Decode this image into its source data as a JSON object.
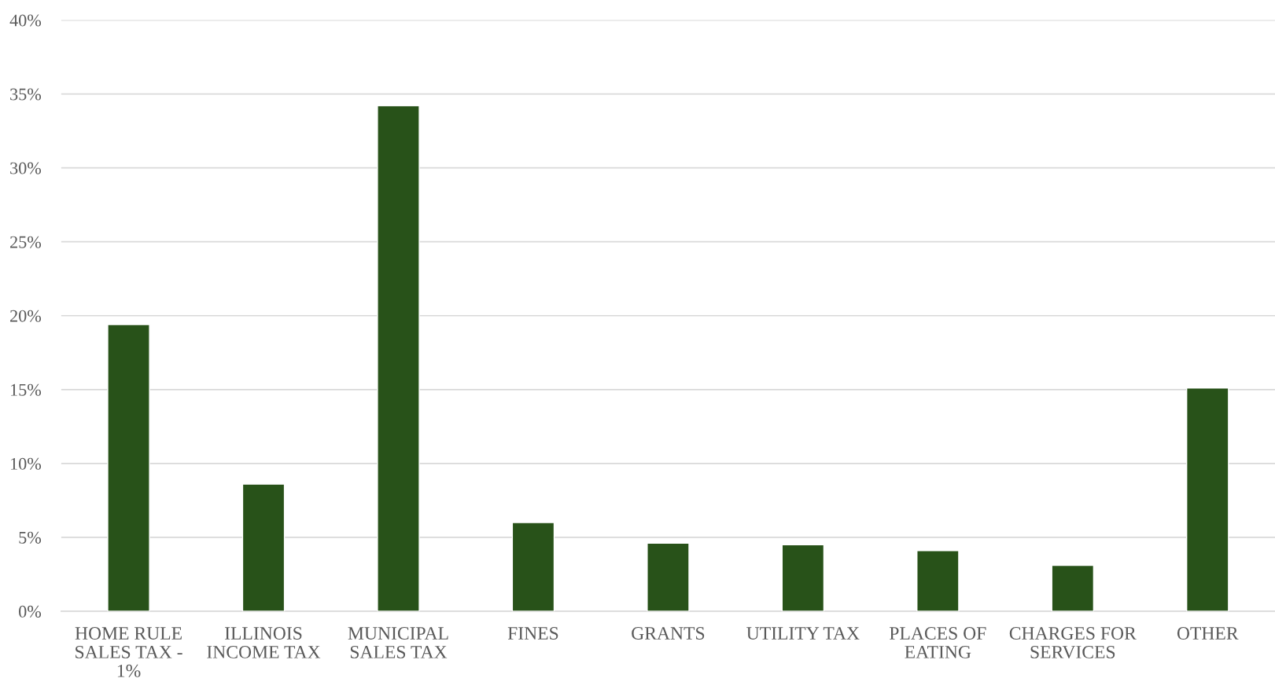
{
  "chart_data": {
    "type": "bar",
    "categories": [
      "HOME RULE SALES TAX - 1%",
      "ILLINOIS INCOME TAX",
      "MUNICIPAL SALES TAX",
      "FINES",
      "GRANTS",
      "UTILITY TAX",
      "PLACES OF EATING",
      "CHARGES FOR SERVICES",
      "OTHER"
    ],
    "values": [
      19.4,
      8.6,
      34.2,
      6.0,
      4.6,
      4.5,
      4.1,
      3.1,
      15.1
    ],
    "color": "#285219",
    "ylim": [
      0,
      40
    ],
    "yticks": [
      {
        "value": 0,
        "label": "0%"
      },
      {
        "value": 5,
        "label": "5%"
      },
      {
        "value": 10,
        "label": "10%"
      },
      {
        "value": 15,
        "label": "15%"
      },
      {
        "value": 20,
        "label": "20%"
      },
      {
        "value": 25,
        "label": "25%"
      },
      {
        "value": 30,
        "label": "30%"
      },
      {
        "value": 35,
        "label": "35%"
      },
      {
        "value": 40,
        "label": "40%"
      }
    ],
    "grid": "y",
    "legend": false
  }
}
